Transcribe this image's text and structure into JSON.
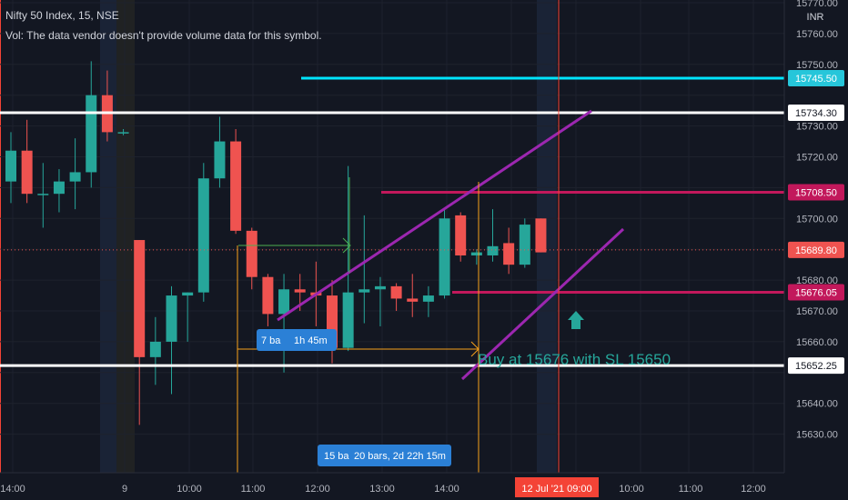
{
  "header": {
    "title": "Nifty 50 Index, 15, NSE",
    "volume_note": "Vol: The data vendor doesn't provide volume data for this symbol."
  },
  "price_axis": {
    "currency": "INR",
    "ticks": [
      "15770.00",
      "15760.00",
      "15750.00",
      "15730.00",
      "15720.00",
      "15700.00",
      "15680.00",
      "15670.00",
      "15660.00",
      "15640.00",
      "15630.00"
    ]
  },
  "price_labels": [
    {
      "text": "15745.50",
      "price": 15745.5,
      "color": "#26c6da",
      "line": "#00e5ff"
    },
    {
      "text": "15734.30",
      "price": 15734.3,
      "color": "#ffffff",
      "line": "#ffffff"
    },
    {
      "text": "15708.50",
      "price": 15708.5,
      "color": "#c2185b",
      "line": "#c2185b"
    },
    {
      "text": "15689.80",
      "price": 15689.8,
      "color": "#ef5350",
      "line": "none"
    },
    {
      "text": "15676.05",
      "price": 15676.05,
      "color": "#c2185b",
      "line": "#c2185b"
    },
    {
      "text": "15652.25",
      "price": 15652.25,
      "color": "#ffffff",
      "line": "#ffffff"
    }
  ],
  "time_axis": {
    "ticks": [
      "14:00",
      "9",
      "10:00",
      "11:00",
      "12:00",
      "13:00",
      "14:00",
      "10:00",
      "11:00",
      "12:00"
    ],
    "highlight": "12 Jul '21   09:00"
  },
  "annotations": {
    "buy_note": "Buy at 15676 with SL 15650",
    "measure_small_1": "7 ba",
    "measure_small_2": "1h 45m",
    "measure_big_1": "15 ba",
    "measure_big_2": "20 bars, 2d 22h 15m"
  },
  "colors": {
    "background": "#131722",
    "up": "#26a69a",
    "down": "#ef5350",
    "channel": "#9c27b0",
    "measure": "#f7a21b",
    "text": "#d1d4dc",
    "current_line": "#f44336"
  },
  "chart_data": {
    "type": "candlestick",
    "title": "Nifty 50 Index, 15, NSE",
    "ylabel": "INR",
    "ylim": [
      15628,
      15775
    ],
    "candles": [
      {
        "o": 15712,
        "h": 15728,
        "l": 15705,
        "c": 15722
      },
      {
        "o": 15722,
        "h": 15732,
        "l": 15705,
        "c": 15708
      },
      {
        "o": 15708,
        "h": 15718,
        "l": 15697,
        "c": 15708
      },
      {
        "o": 15708,
        "h": 15716,
        "l": 15702,
        "c": 15712
      },
      {
        "o": 15712,
        "h": 15726,
        "l": 15703,
        "c": 15715
      },
      {
        "o": 15715,
        "h": 15751,
        "l": 15710,
        "c": 15740
      },
      {
        "o": 15740,
        "h": 15748,
        "l": 15725,
        "c": 15728
      },
      {
        "o": 15728,
        "h": 15729,
        "l": 15727,
        "c": 15728
      },
      {
        "o": 15693,
        "h": 15693,
        "l": 15633,
        "c": 15655
      },
      {
        "o": 15655,
        "h": 15668,
        "l": 15646,
        "c": 15660
      },
      {
        "o": 15660,
        "h": 15678,
        "l": 15643,
        "c": 15675
      },
      {
        "o": 15675,
        "h": 15676,
        "l": 15660,
        "c": 15676
      },
      {
        "o": 15676,
        "h": 15718,
        "l": 15673,
        "c": 15713
      },
      {
        "o": 15713,
        "h": 15733,
        "l": 15710,
        "c": 15725
      },
      {
        "o": 15725,
        "h": 15729,
        "l": 15695,
        "c": 15696
      },
      {
        "o": 15696,
        "h": 15697,
        "l": 15677,
        "c": 15681
      },
      {
        "o": 15681,
        "h": 15682,
        "l": 15665,
        "c": 15669
      },
      {
        "o": 15669,
        "h": 15682,
        "l": 15650,
        "c": 15677
      },
      {
        "o": 15677,
        "h": 15682,
        "l": 15670,
        "c": 15676
      },
      {
        "o": 15676,
        "h": 15686,
        "l": 15665,
        "c": 15675
      },
      {
        "o": 15675,
        "h": 15680,
        "l": 15653,
        "c": 15658
      },
      {
        "o": 15658,
        "h": 15717,
        "l": 15657,
        "c": 15676
      },
      {
        "o": 15676,
        "h": 15701,
        "l": 15666,
        "c": 15677
      },
      {
        "o": 15677,
        "h": 15681,
        "l": 15665,
        "c": 15678
      },
      {
        "o": 15678,
        "h": 15679,
        "l": 15670,
        "c": 15674
      },
      {
        "o": 15674,
        "h": 15682,
        "l": 15668,
        "c": 15673
      },
      {
        "o": 15673,
        "h": 15678,
        "l": 15668,
        "c": 15675
      },
      {
        "o": 15675,
        "h": 15703,
        "l": 15674,
        "c": 15700
      },
      {
        "o": 15701,
        "h": 15702,
        "l": 15686,
        "c": 15688
      },
      {
        "o": 15688,
        "h": 15690,
        "l": 15685,
        "c": 15689
      },
      {
        "o": 15688,
        "h": 15703,
        "l": 15686,
        "c": 15691
      },
      {
        "o": 15692,
        "h": 15697,
        "l": 15682,
        "c": 15685
      },
      {
        "o": 15685,
        "h": 15700,
        "l": 15684,
        "c": 15698
      },
      {
        "o": 15700,
        "h": 15700,
        "l": 15689,
        "c": 15689
      }
    ]
  }
}
